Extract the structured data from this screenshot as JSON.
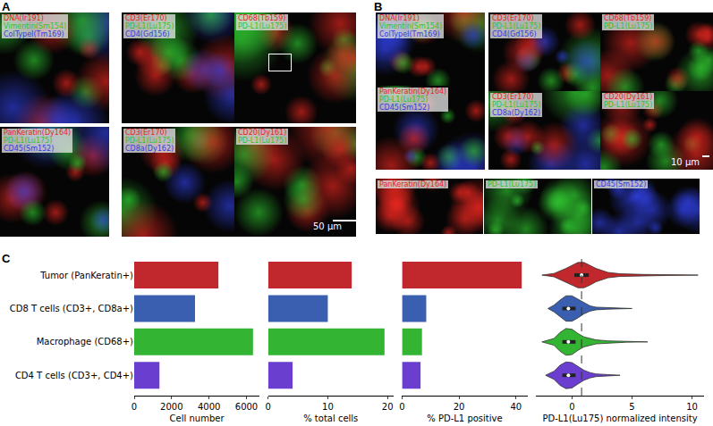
{
  "panels": [
    {
      "label": "A",
      "scale_bar": "50 µm",
      "tiles": [
        {
          "channels": [
            {
              "text": "DNA(Ir191)",
              "color": "#e8261f"
            },
            {
              "text": "Vimentin(Sm154)",
              "color": "#2fc42f"
            },
            {
              "text": "ColTypeI(Tm169)",
              "color": "#2f3fe0"
            }
          ]
        },
        {
          "channels": [
            {
              "text": "CD3(Er170)",
              "color": "#e8261f"
            },
            {
              "text": "PD-L1(Lu175)",
              "color": "#2fc42f"
            },
            {
              "text": "CD4(Gd156)",
              "color": "#2f3fe0"
            }
          ]
        },
        {
          "channels": [
            {
              "text": "CD68(Tb159)",
              "color": "#e8261f"
            },
            {
              "text": "PD-L1(Lu175)",
              "color": "#2fc42f"
            }
          ]
        },
        {
          "channels": [
            {
              "text": "PanKeratin(Dy164)",
              "color": "#e8261f"
            },
            {
              "text": "PD-L1(Lu175)",
              "color": "#2fc42f"
            },
            {
              "text": "CD45(Sm152)",
              "color": "#2f3fe0"
            }
          ]
        },
        {
          "channels": [
            {
              "text": "CD3(Er170)",
              "color": "#e8261f"
            },
            {
              "text": "PD-L1(Lu175)",
              "color": "#2fc42f"
            },
            {
              "text": "CD8a(Dy162)",
              "color": "#2f3fe0"
            }
          ]
        },
        {
          "channels": [
            {
              "text": "CD20(Dy161)",
              "color": "#e8261f"
            },
            {
              "text": "PD-L1(Lu175)",
              "color": "#2fc42f"
            }
          ]
        }
      ]
    },
    {
      "label": "B",
      "scale_bar": "10 µm",
      "tiles": [
        {
          "channels": [
            {
              "text": "DNA(Ir191)",
              "color": "#e8261f"
            },
            {
              "text": "Vimentin(Sm154)",
              "color": "#2fc42f"
            },
            {
              "text": "ColTypeI(Tm169)",
              "color": "#2f3fe0"
            }
          ]
        },
        {
          "channels": [
            {
              "text": "PanKeratin(Dy164)",
              "color": "#e8261f"
            },
            {
              "text": "PD-L1(Lu175)",
              "color": "#2fc42f"
            },
            {
              "text": "CD45(Sm152)",
              "color": "#2f3fe0"
            }
          ]
        },
        {
          "channels": [
            {
              "text": "CD3(Er170)",
              "color": "#e8261f"
            },
            {
              "text": "PD-L1(Lu175)",
              "color": "#2fc42f"
            },
            {
              "text": "CD4(Gd156)",
              "color": "#2f3fe0"
            }
          ]
        },
        {
          "channels": [
            {
              "text": "CD68(Tb159)",
              "color": "#e8261f"
            },
            {
              "text": "PD-L1(Lu175)",
              "color": "#2fc42f"
            }
          ]
        },
        {
          "channels": [
            {
              "text": "CD3(Er170)",
              "color": "#e8261f"
            },
            {
              "text": "PD-L1(Lu175)",
              "color": "#2fc42f"
            },
            {
              "text": "CD8a(Dy162)",
              "color": "#2f3fe0"
            }
          ]
        },
        {
          "channels": [
            {
              "text": "CD20(Dy161)",
              "color": "#e8261f"
            },
            {
              "text": "PD-L1(Lu175)",
              "color": "#2fc42f"
            }
          ]
        },
        {
          "channels": [
            {
              "text": "PanKeratin(Dy164)",
              "color": "#e8261f"
            }
          ]
        },
        {
          "channels": [
            {
              "text": "PD-L1(Lu175)",
              "color": "#2fc42f"
            }
          ]
        },
        {
          "channels": [
            {
              "text": "CD45(Sm152)",
              "color": "#2f3fe0"
            }
          ]
        }
      ]
    },
    {
      "label": "C"
    }
  ],
  "chart_data": [
    {
      "type": "bar",
      "orientation": "horizontal",
      "categories": [
        "Tumor (PanKeratin+)",
        "CD8 T cells (CD3+, CD8a+)",
        "Macrophage (CD68+)",
        "CD4 T cells (CD3+, CD4+)"
      ],
      "values": [
        4500,
        3250,
        6350,
        1350
      ],
      "colors": [
        "#c0282d",
        "#3a5fb0",
        "#33b533",
        "#6a3fd0"
      ],
      "xlabel": "Cell number",
      "xlim": [
        0,
        6700
      ],
      "xticks": [
        0,
        2000,
        4000,
        6000
      ],
      "grid": false
    },
    {
      "type": "bar",
      "orientation": "horizontal",
      "categories": [
        "Tumor (PanKeratin+)",
        "CD8 T cells (CD3+, CD8a+)",
        "Macrophage (CD68+)",
        "CD4 T cells (CD3+, CD4+)"
      ],
      "values": [
        14,
        10,
        19.5,
        4.1
      ],
      "colors": [
        "#c0282d",
        "#3a5fb0",
        "#33b533",
        "#6a3fd0"
      ],
      "xlabel": "% total cells",
      "xlim": [
        0,
        21
      ],
      "xticks": [
        0,
        10,
        20
      ],
      "grid": false,
      "tick_labels": "x"
    },
    {
      "type": "bar",
      "orientation": "horizontal",
      "categories": [
        "Tumor (PanKeratin+)",
        "CD8 T cells (CD3+, CD8a+)",
        "Macrophage (CD68+)",
        "CD4 T cells (CD3+, CD4+)"
      ],
      "values": [
        42,
        8.5,
        7,
        6.5
      ],
      "colors": [
        "#c0282d",
        "#3a5fb0",
        "#33b533",
        "#6a3fd0"
      ],
      "xlabel": "% PD-L1 positive",
      "xlim": [
        0,
        44
      ],
      "xticks": [
        0,
        20,
        40
      ],
      "grid": false,
      "tick_labels": "x"
    },
    {
      "type": "violin",
      "categories": [
        "Tumor (PanKeratin+)",
        "CD8 T cells (CD3+, CD8a+)",
        "Macrophage (CD68+)",
        "CD4 T cells (CD3+, CD4+)"
      ],
      "series": [
        {
          "color": "#c0282d",
          "x": [
            -2.5,
            -1.5,
            -0.5,
            0,
            0.5,
            1,
            1.5,
            2,
            3,
            4,
            6,
            8,
            10.5
          ],
          "density": [
            0,
            0.05,
            0.2,
            0.3,
            0.38,
            0.38,
            0.3,
            0.2,
            0.08,
            0.04,
            0.02,
            0.01,
            0
          ],
          "box": {
            "q1": 0.2,
            "median": 0.8,
            "q3": 1.4
          }
        },
        {
          "color": "#3a5fb0",
          "x": [
            -2,
            -1.5,
            -1,
            -0.5,
            0,
            0.5,
            1,
            1.5,
            2,
            3,
            5
          ],
          "density": [
            0,
            0.1,
            0.25,
            0.38,
            0.38,
            0.28,
            0.16,
            0.08,
            0.04,
            0.02,
            0
          ],
          "box": {
            "q1": -0.8,
            "median": -0.3,
            "q3": 0.3
          }
        },
        {
          "color": "#33b533",
          "x": [
            -2.5,
            -1.5,
            -1,
            -0.5,
            0,
            0.5,
            1,
            2,
            3,
            4.5,
            6.3
          ],
          "density": [
            0,
            0.1,
            0.28,
            0.4,
            0.38,
            0.25,
            0.15,
            0.06,
            0.03,
            0.01,
            0
          ],
          "box": {
            "q1": -0.8,
            "median": -0.3,
            "q3": 0.3
          }
        },
        {
          "color": "#6a3fd0",
          "x": [
            -2.2,
            -1.5,
            -1,
            -0.5,
            0,
            0.5,
            1,
            1.5,
            2,
            3,
            4
          ],
          "density": [
            0,
            0.12,
            0.3,
            0.4,
            0.38,
            0.26,
            0.15,
            0.08,
            0.04,
            0.02,
            0
          ],
          "box": {
            "q1": -0.8,
            "median": -0.3,
            "q3": 0.3
          }
        }
      ],
      "xlabel": "PD-L1(Lu175) normalized intensity",
      "xlim": [
        -3,
        11
      ],
      "xticks": [
        0,
        5,
        10
      ],
      "reference_line": 0.8,
      "grid": false,
      "tick_labels": "x"
    }
  ]
}
